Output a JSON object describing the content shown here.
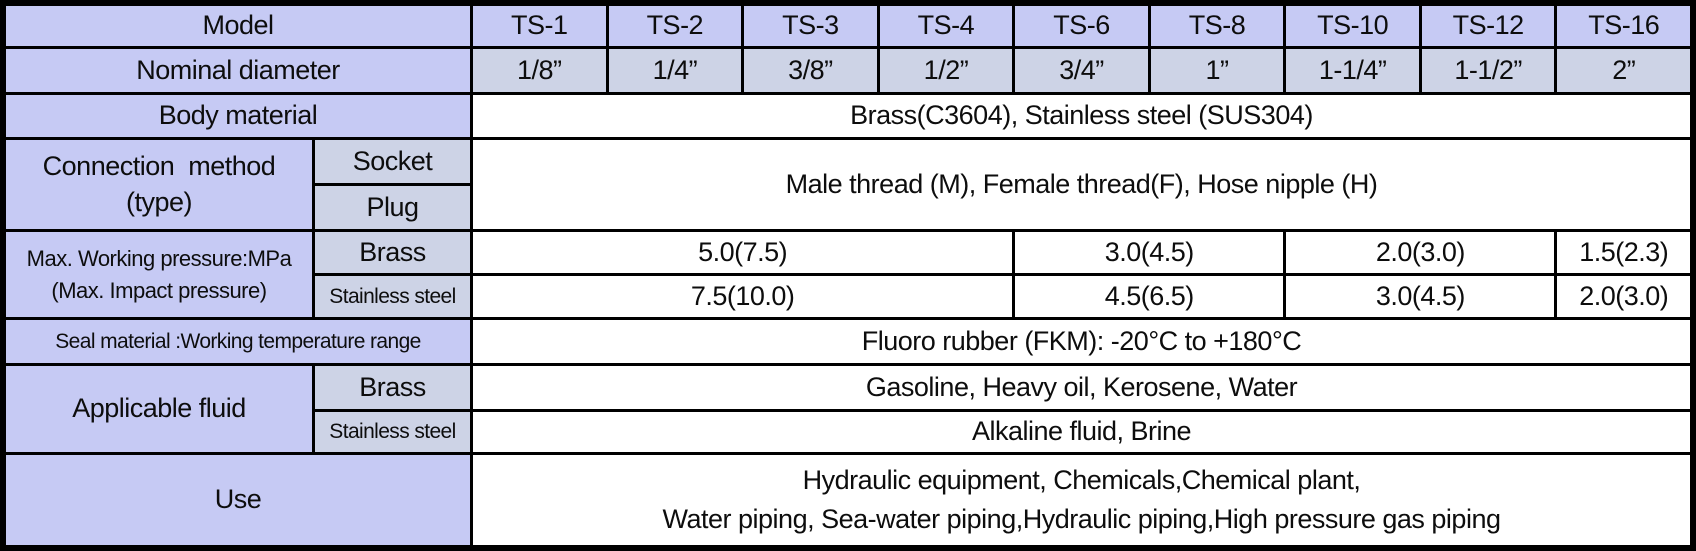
{
  "colors": {
    "label_bg": "#c6caf4",
    "sub_bg": "#cdd3e6",
    "content_bg": "#ffffff",
    "border": "#000000",
    "text": "#0d0d0d"
  },
  "table": {
    "header": {
      "model_label": "Model",
      "models": [
        "TS-1",
        "TS-2",
        "TS-3",
        "TS-4",
        "TS-6",
        "TS-8",
        "TS-10",
        "TS-12",
        "TS-16"
      ],
      "diameter_label": "Nominal diameter",
      "diameters": [
        "1/8”",
        "1/4”",
        "3/8”",
        "1/2”",
        "3/4”",
        "1”",
        "1-1/4”",
        "1-1/2”",
        "2”"
      ]
    },
    "body_material": {
      "label": "Body material",
      "value": "Brass(C3604), Stainless steel (SUS304)"
    },
    "connection": {
      "label": "Connection  method\n(type)",
      "sub_socket": "Socket",
      "sub_plug": "Plug",
      "value": "Male thread (M), Female thread(F), Hose nipple (H)"
    },
    "pressure": {
      "label": "Max. Working pressure:MPa\n(Max. Impact pressure)",
      "sub_brass": "Brass",
      "sub_stainless": "Stainless steel",
      "brass_values": [
        "5.0(7.5)",
        "3.0(4.5)",
        "2.0(3.0)",
        "1.5(2.3)"
      ],
      "stainless_values": [
        "7.5(10.0)",
        "4.5(6.5)",
        "3.0(4.5)",
        "2.0(3.0)"
      ]
    },
    "seal": {
      "label": "Seal material :Working temperature range",
      "value": "Fluoro rubber (FKM): -20°C to +180°C"
    },
    "fluid": {
      "label": "Applicable fluid",
      "sub_brass": "Brass",
      "sub_stainless": "Stainless steel",
      "brass_value": "Gasoline, Heavy oil, Kerosene, Water",
      "stainless_value": "Alkaline fluid, Brine"
    },
    "use": {
      "label": "Use",
      "value": "Hydraulic equipment, Chemicals,Chemical plant,\nWater piping, Sea-water piping,Hydraulic piping,High pressure gas piping"
    }
  },
  "chart_data": {
    "type": "table",
    "columns": [
      "Model",
      "TS-1",
      "TS-2",
      "TS-3",
      "TS-4",
      "TS-6",
      "TS-8",
      "TS-10",
      "TS-12",
      "TS-16"
    ],
    "rows": [
      {
        "label": "Nominal diameter",
        "values": [
          "1/8”",
          "1/4”",
          "3/8”",
          "1/2”",
          "3/4”",
          "1”",
          "1-1/4”",
          "1-1/2”",
          "2”"
        ]
      },
      {
        "label": "Body material",
        "values": [
          "Brass(C3604), Stainless steel (SUS304)"
        ],
        "span": "all"
      },
      {
        "label": "Connection  method (type) — Socket / Plug",
        "values": [
          "Male thread (M), Female thread(F), Hose nipple (H)"
        ],
        "span": "all"
      },
      {
        "label": "Max. Working pressure:MPa (Max. Impact pressure) — Brass",
        "values": [
          "5.0(7.5)",
          "3.0(4.5)",
          "2.0(3.0)",
          "1.5(2.3)"
        ],
        "spans": [
          "TS-1–TS-4",
          "TS-6–TS-8",
          "TS-10–TS-12",
          "TS-16"
        ]
      },
      {
        "label": "Max. Working pressure:MPa (Max. Impact pressure) — Stainless steel",
        "values": [
          "7.5(10.0)",
          "4.5(6.5)",
          "3.0(4.5)",
          "2.0(3.0)"
        ],
        "spans": [
          "TS-1–TS-4",
          "TS-6–TS-8",
          "TS-10–TS-12",
          "TS-16"
        ]
      },
      {
        "label": "Seal material :Working temperature range",
        "values": [
          "Fluoro rubber (FKM): -20°C to +180°C"
        ],
        "span": "all"
      },
      {
        "label": "Applicable fluid — Brass",
        "values": [
          "Gasoline, Heavy oil, Kerosene, Water"
        ],
        "span": "all"
      },
      {
        "label": "Applicable fluid — Stainless steel",
        "values": [
          "Alkaline fluid, Brine"
        ],
        "span": "all"
      },
      {
        "label": "Use",
        "values": [
          "Hydraulic equipment, Chemicals,Chemical plant, Water piping, Sea-water piping,Hydraulic piping,High pressure gas piping"
        ],
        "span": "all"
      }
    ]
  }
}
